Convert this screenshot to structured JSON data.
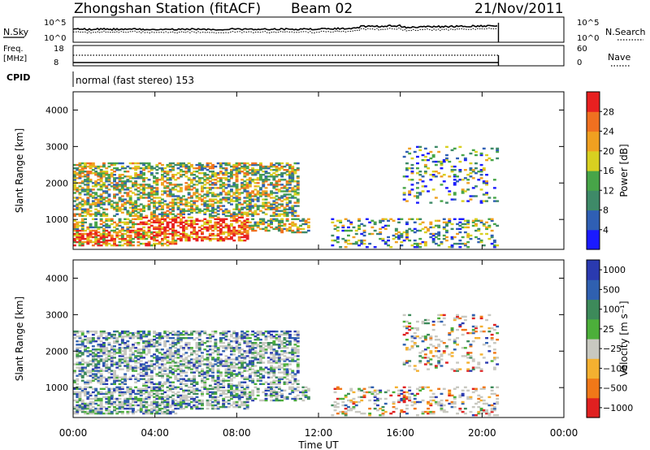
{
  "header": {
    "title": "Zhongshan Station (fitACF)",
    "beam": "Beam 02",
    "date": "21/Nov/2011"
  },
  "top_panels": {
    "nsky_label": "N.Sky",
    "nsky_ticks": [
      "10^5",
      "10^0"
    ],
    "nsearch_label": "N.Search",
    "nsearch_ticks": [
      "10^5",
      "10^0"
    ],
    "freq_label": "Freq.",
    "freq_unit": "[MHz]",
    "freq_ticks": [
      "18",
      "8"
    ],
    "nave_label": "Nave",
    "nave_ticks": [
      "60",
      "0"
    ],
    "cpid_label": "CPID",
    "cpid_value": "normal (fast stereo) 153"
  },
  "chart_data": [
    {
      "type": "heatmap",
      "panel": "power",
      "ylabel": "Slant Range [km]",
      "xlabel": "Time UT",
      "xlim_hours": [
        0,
        24
      ],
      "ylim": [
        180,
        4500
      ],
      "x_ticks": [
        "00:00",
        "04:00",
        "08:00",
        "12:00",
        "16:00",
        "20:00",
        "00:00"
      ],
      "y_ticks": [
        1000,
        2000,
        3000,
        4000
      ],
      "colorbar": {
        "label": "Power [dB]",
        "ticks": [
          4,
          8,
          12,
          16,
          20,
          24,
          28
        ],
        "colors": [
          "#1a1aff",
          "#2f5fb4",
          "#3e8a68",
          "#47a548",
          "#d8d020",
          "#f0a020",
          "#f07020",
          "#e82020"
        ]
      },
      "data_coverage_hours": [
        0,
        20.8
      ]
    },
    {
      "type": "heatmap",
      "panel": "velocity",
      "ylabel": "Slant Range [km]",
      "xlabel": "Time UT",
      "xlim_hours": [
        0,
        24
      ],
      "ylim": [
        180,
        4500
      ],
      "x_ticks": [
        "00:00",
        "04:00",
        "08:00",
        "12:00",
        "16:00",
        "20:00",
        "00:00"
      ],
      "y_ticks": [
        1000,
        2000,
        3000,
        4000
      ],
      "colorbar": {
        "label": "Velocity [m s⁻¹]",
        "ticks": [
          "1000",
          "500",
          "100",
          "25",
          "−25",
          "−100",
          "−500",
          "−1000"
        ],
        "colors": [
          "#2a3ab0",
          "#2f60b0",
          "#3d8a5a",
          "#4caf3a",
          "#c8c8c0",
          "#f4b030",
          "#f07818",
          "#e02020"
        ]
      },
      "data_coverage_hours": [
        0,
        20.8
      ]
    }
  ]
}
